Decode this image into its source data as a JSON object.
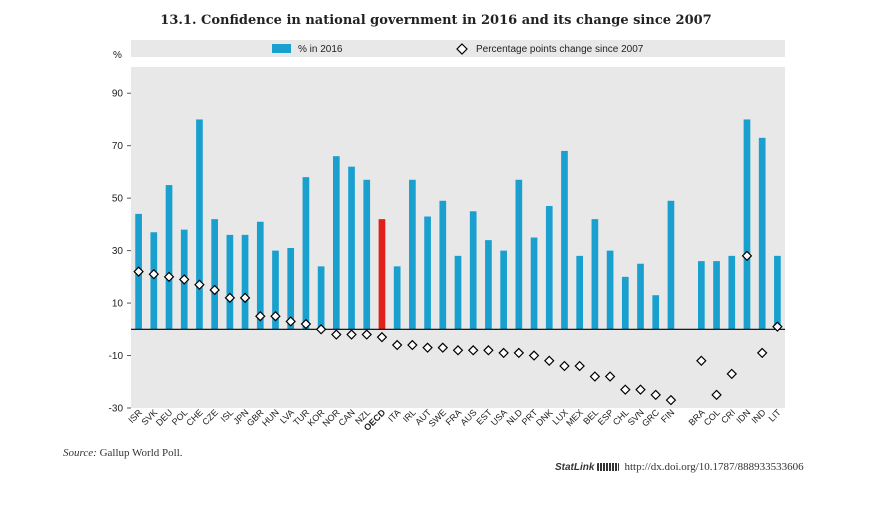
{
  "chart_data": {
    "type": "bar",
    "title": "13.1. Confidence in national government in 2016 and its change since 2007",
    "ylabel": "%",
    "ylim": [
      -30,
      100
    ],
    "yticks": [
      -30,
      -10,
      10,
      30,
      50,
      70,
      90
    ],
    "legend_position": "top",
    "grid": false,
    "categories": [
      "ISR",
      "SVK",
      "DEU",
      "POL",
      "CHE",
      "CZE",
      "ISL",
      "JPN",
      "GBR",
      "HUN",
      "LVA",
      "TUR",
      "KOR",
      "NOR",
      "CAN",
      "NZL",
      "OECD",
      "ITA",
      "IRL",
      "AUT",
      "SWE",
      "FRA",
      "AUS",
      "EST",
      "USA",
      "NLD",
      "PRT",
      "DNK",
      "LUX",
      "MEX",
      "BEL",
      "ESP",
      "CHL",
      "SVN",
      "GRC",
      "FIN",
      "",
      "BRA",
      "COL",
      "CRI",
      "IDN",
      "IND",
      "LIT"
    ],
    "highlight_category": "OECD",
    "series": [
      {
        "name": "% in 2016",
        "kind": "bar",
        "color": "#1AA0CF",
        "highlight_color": "#E0201B",
        "values": [
          44,
          37,
          55,
          38,
          80,
          42,
          36,
          36,
          41,
          30,
          31,
          58,
          24,
          66,
          62,
          57,
          42,
          24,
          57,
          43,
          49,
          28,
          45,
          34,
          30,
          57,
          35,
          47,
          68,
          28,
          42,
          30,
          20,
          25,
          13,
          49,
          null,
          26,
          26,
          28,
          80,
          73,
          28
        ]
      },
      {
        "name": "Percentage points change since 2007",
        "kind": "marker",
        "marker": "diamond",
        "color": "#000000",
        "values": [
          22,
          21,
          20,
          19,
          17,
          15,
          12,
          12,
          5,
          5,
          3,
          2,
          0,
          -2,
          -2,
          -2,
          -3,
          -6,
          -6,
          -7,
          -7,
          -8,
          -8,
          -8,
          -9,
          -9,
          -10,
          -12,
          -14,
          -14,
          -18,
          -18,
          -23,
          -23,
          -25,
          -27,
          null,
          -12,
          -25,
          -17,
          28,
          -9,
          1
        ]
      }
    ]
  },
  "footer": {
    "source_label": "Source:",
    "source_text": "Gallup World Poll.",
    "statlink_label": "StatLink",
    "statlink_url": "http://dx.doi.org/10.1787/888933533606"
  }
}
